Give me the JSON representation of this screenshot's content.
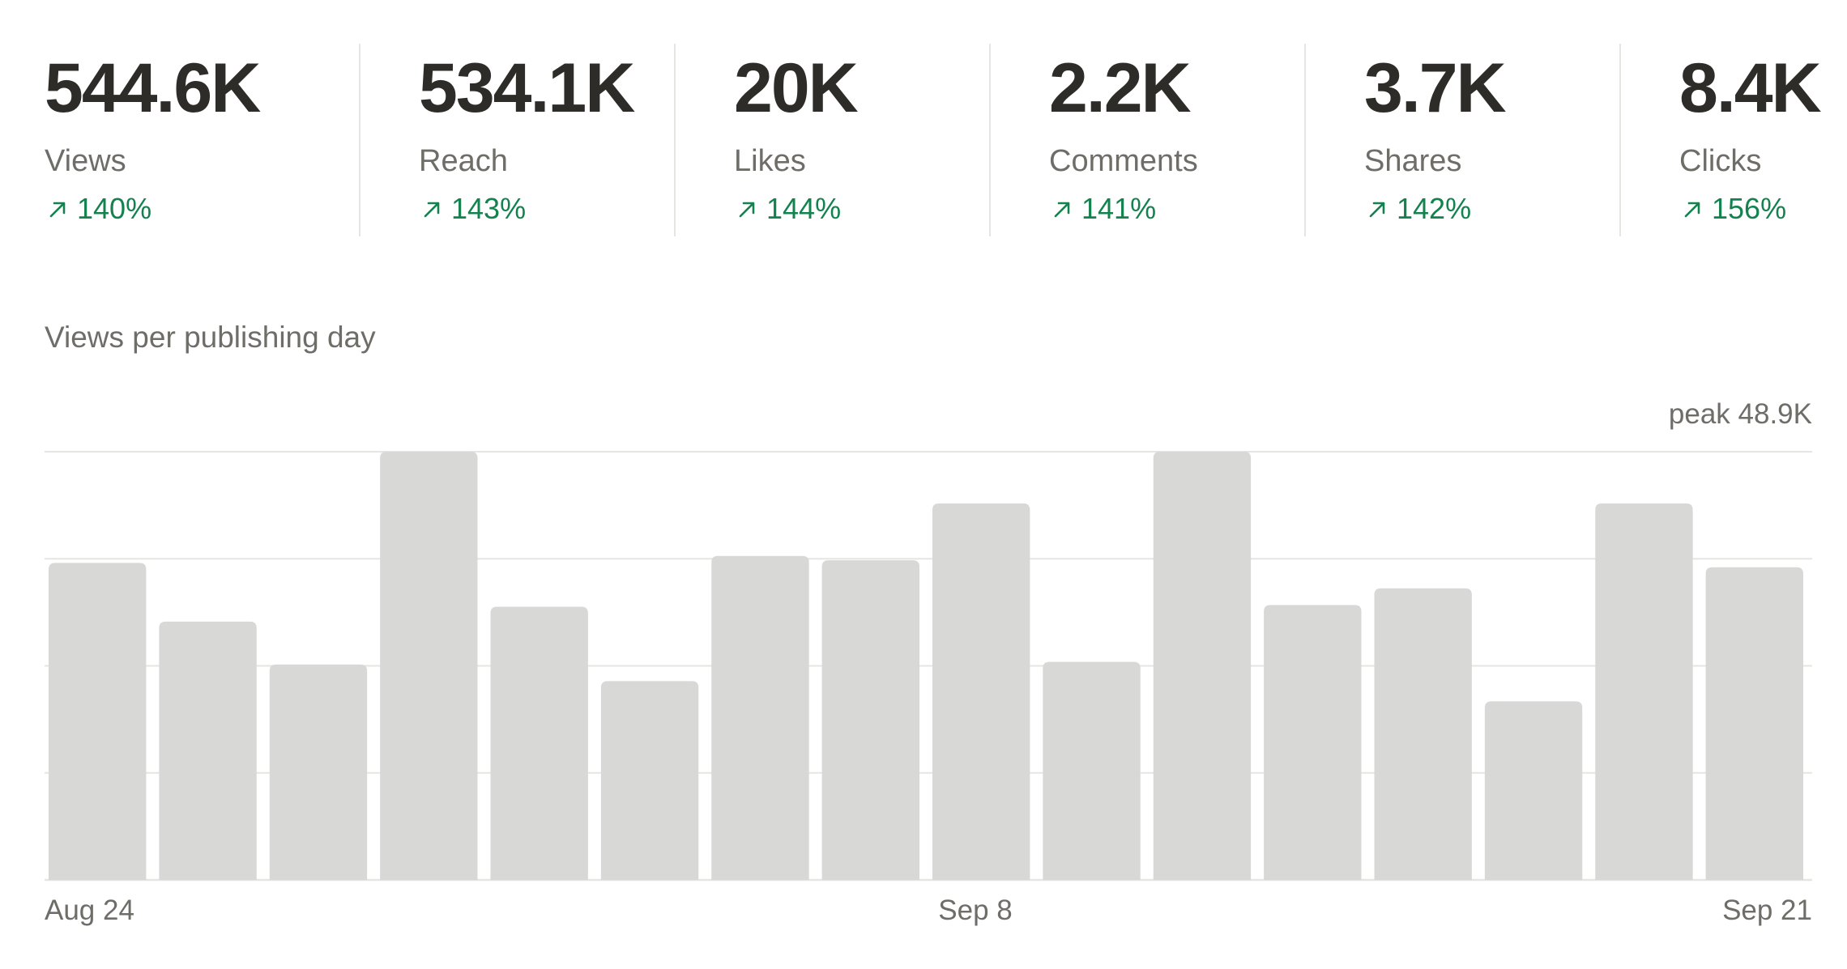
{
  "stats": [
    {
      "value": "544.6K",
      "label": "Views",
      "change": "140%"
    },
    {
      "value": "534.1K",
      "label": "Reach",
      "change": "143%"
    },
    {
      "value": "20K",
      "label": "Likes",
      "change": "144%"
    },
    {
      "value": "2.2K",
      "label": "Comments",
      "change": "141%"
    },
    {
      "value": "3.7K",
      "label": "Shares",
      "change": "142%"
    },
    {
      "value": "8.4K",
      "label": "Clicks",
      "change": "156%"
    }
  ],
  "colors": {
    "positive": "#14824e",
    "bar": "#d8d8d7",
    "grid": "#e6e5e2",
    "muted_text": "#6e6d68",
    "value_text": "#2d2c28"
  },
  "chart_data": {
    "type": "bar",
    "title": "Views per publishing day",
    "peak_label": "peak 48.9K",
    "categories": [
      "Aug 24",
      "",
      "",
      "",
      "",
      "",
      "",
      "Sep 8",
      "",
      "",
      "",
      "",
      "",
      "",
      "",
      "Sep 21"
    ],
    "x_tick_labels": [
      "Aug 24",
      "Sep 8",
      "Sep 21"
    ],
    "values": [
      36.2,
      29.5,
      24.6,
      48.9,
      31.2,
      22.7,
      37.0,
      36.5,
      43.0,
      24.9,
      48.9,
      31.4,
      33.3,
      20.4,
      43.0,
      35.7
    ],
    "ylim": [
      0,
      48.9
    ],
    "grid": true,
    "xlabel": "",
    "ylabel": ""
  }
}
